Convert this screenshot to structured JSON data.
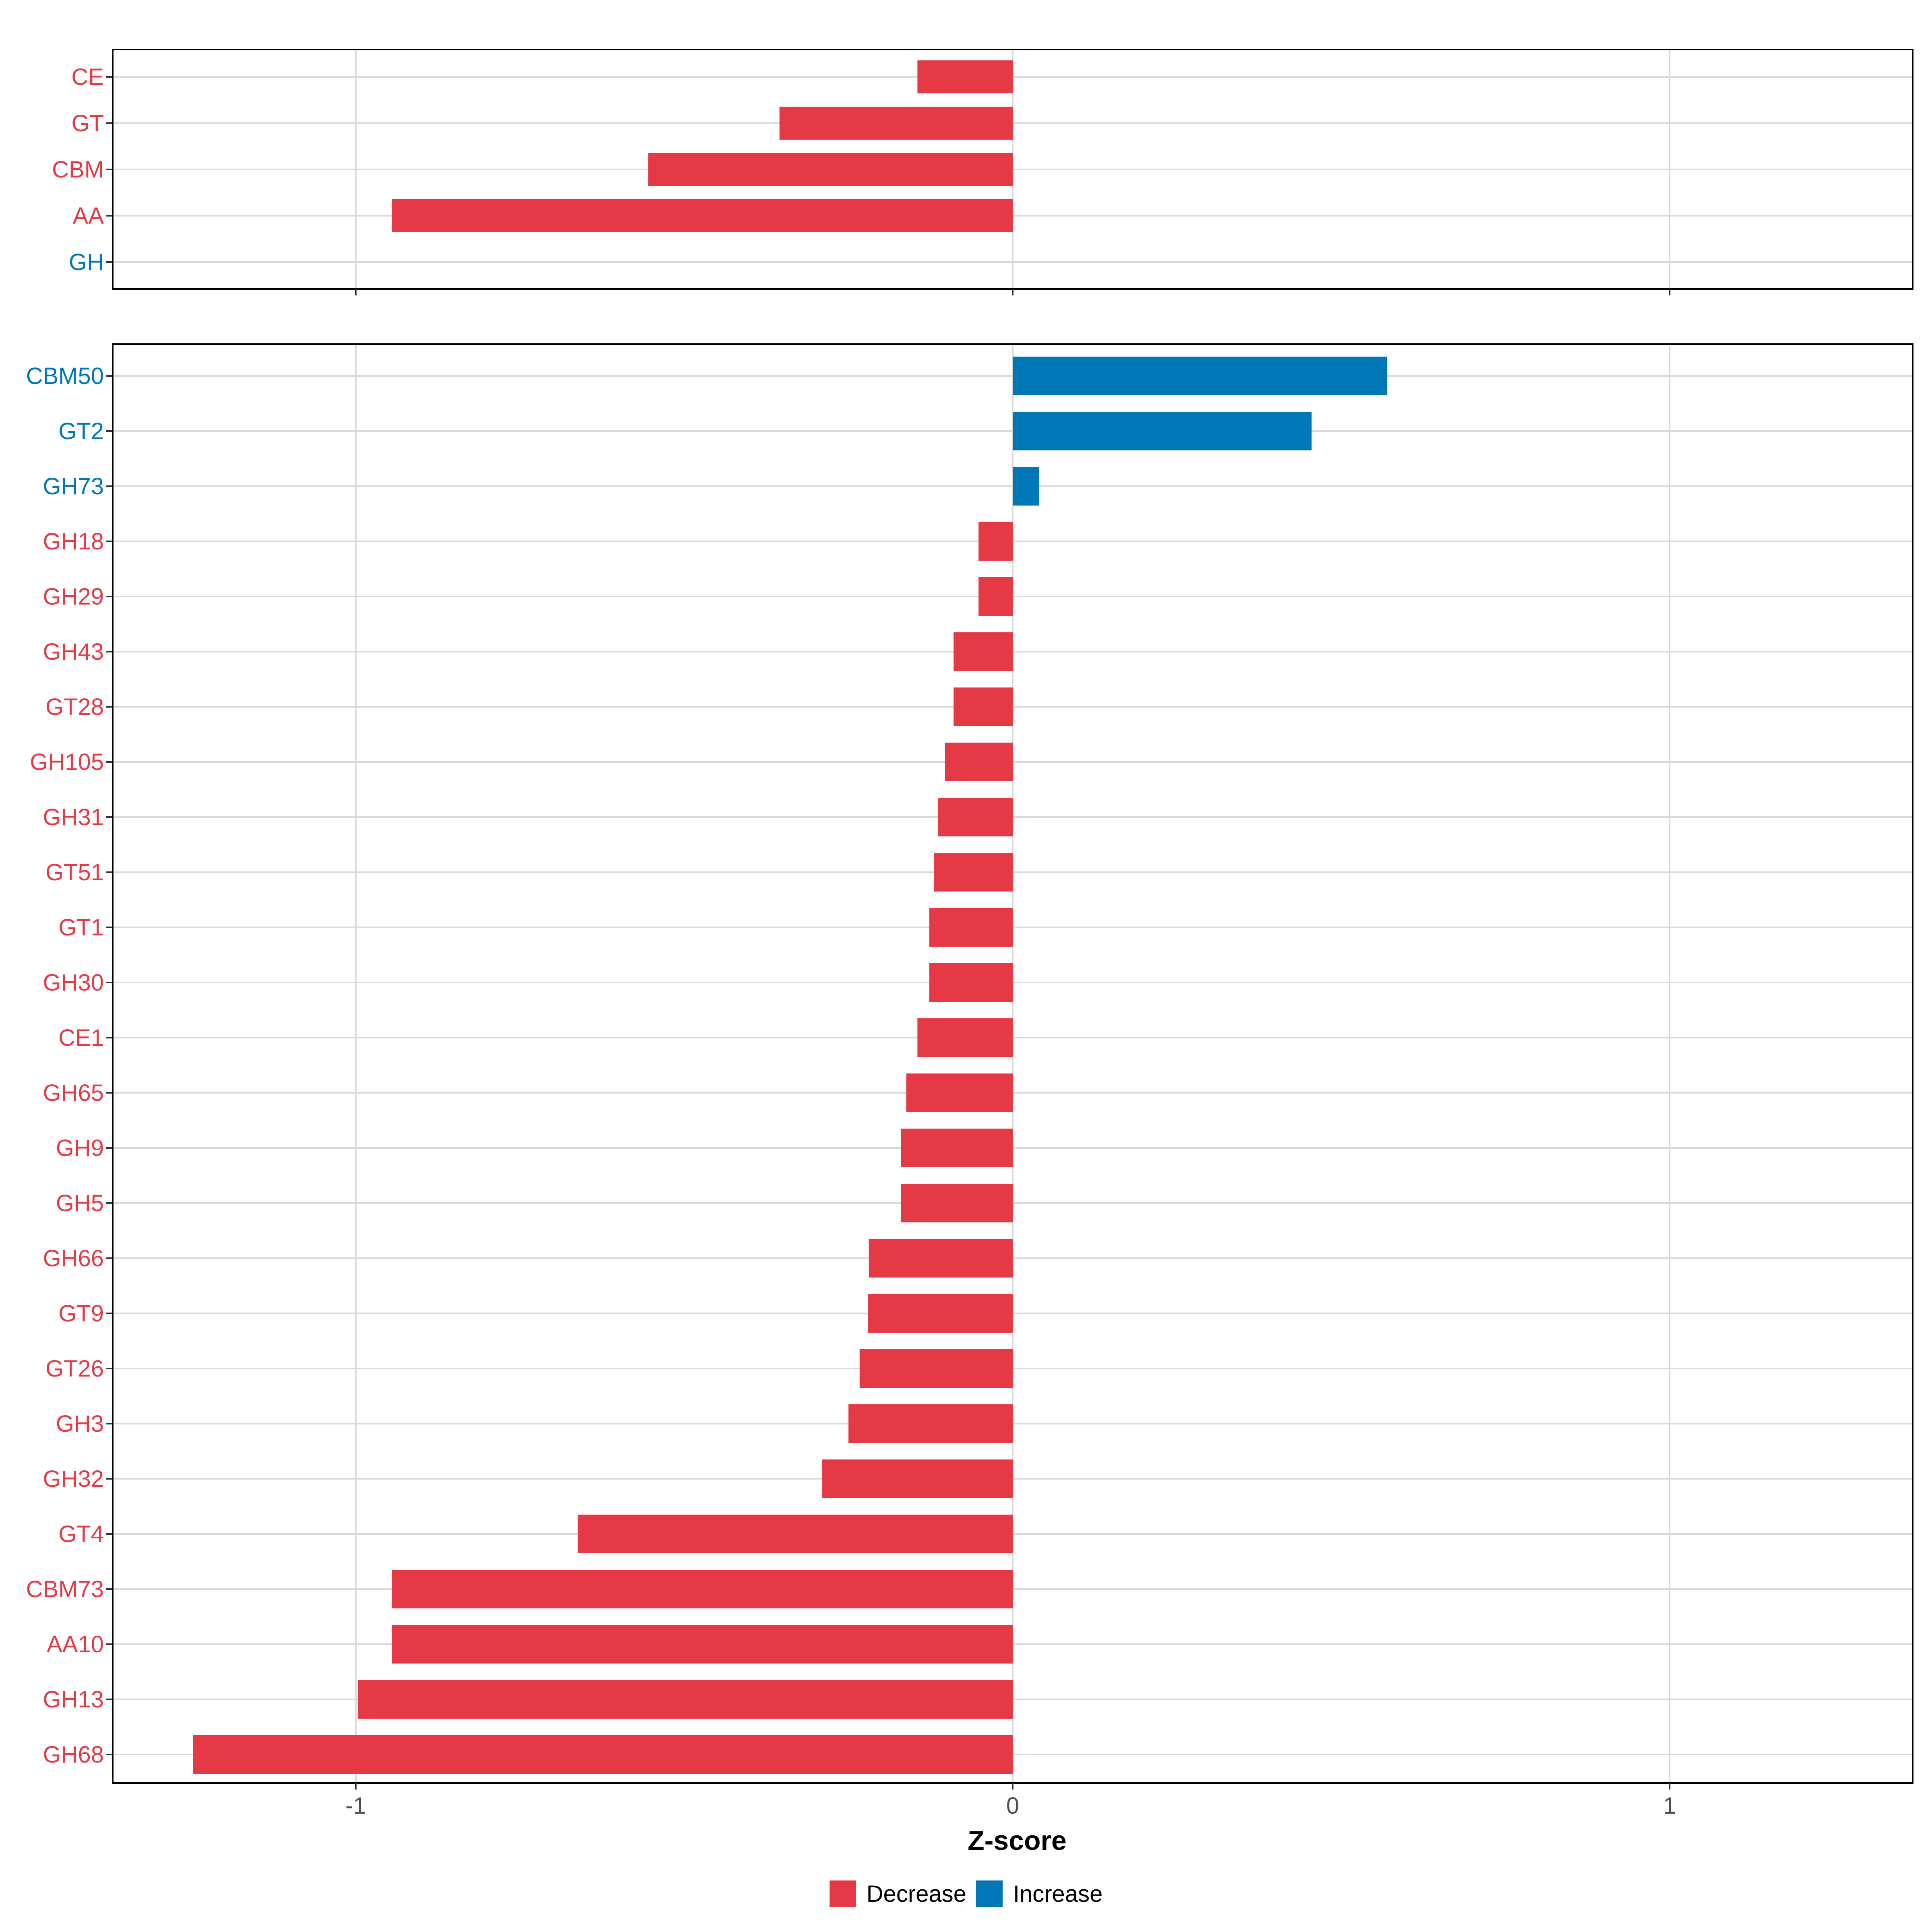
{
  "colors": {
    "decrease": "#E63946",
    "increase": "#0077B6",
    "grid": "#D9D9D9",
    "border": "#000000",
    "tick_text": "#4D4D4D"
  },
  "chart_data": [
    {
      "type": "bar",
      "orientation": "horizontal",
      "panel": "top",
      "categories": [
        "CE",
        "GT",
        "CBM",
        "AA",
        "GH"
      ],
      "values": [
        -0.145,
        -0.355,
        -0.555,
        -0.945,
        0
      ],
      "xlim": [
        -1.37,
        1.37
      ],
      "xticks": [
        -1,
        0,
        1
      ],
      "grid": true
    },
    {
      "type": "bar",
      "orientation": "horizontal",
      "panel": "bottom",
      "categories": [
        "CBM50",
        "GT2",
        "GH73",
        "GH18",
        "GH29",
        "GH43",
        "GT28",
        "GH105",
        "GH31",
        "GT51",
        "GT1",
        "GH30",
        "CE1",
        "GH65",
        "GH9",
        "GH5",
        "GH66",
        "GT9",
        "GT26",
        "GH3",
        "GH32",
        "GT4",
        "CBM73",
        "AA10",
        "GH13",
        "GH68"
      ],
      "values": [
        0.57,
        0.455,
        0.04,
        -0.052,
        -0.052,
        -0.09,
        -0.09,
        -0.103,
        -0.114,
        -0.12,
        -0.127,
        -0.127,
        -0.145,
        -0.162,
        -0.17,
        -0.17,
        -0.219,
        -0.22,
        -0.233,
        -0.25,
        -0.29,
        -0.662,
        -0.945,
        -0.945,
        -0.997,
        -1.248
      ],
      "direction": [
        "Increase",
        "Increase",
        "Increase",
        "Decrease",
        "Decrease",
        "Decrease",
        "Decrease",
        "Decrease",
        "Decrease",
        "Decrease",
        "Decrease",
        "Decrease",
        "Decrease",
        "Decrease",
        "Decrease",
        "Decrease",
        "Decrease",
        "Decrease",
        "Decrease",
        "Decrease",
        "Decrease",
        "Decrease",
        "Decrease",
        "Decrease",
        "Decrease",
        "Decrease"
      ],
      "xlim": [
        -1.37,
        1.37
      ],
      "xticks": [
        -1,
        0,
        1
      ],
      "xtick_labels": [
        "-1",
        "0",
        "1"
      ],
      "xlabel": "Z-score",
      "grid": true
    }
  ],
  "legend": {
    "placement": "bottom-center",
    "items": [
      {
        "label": "Decrease"
      },
      {
        "label": "Increase"
      }
    ]
  }
}
